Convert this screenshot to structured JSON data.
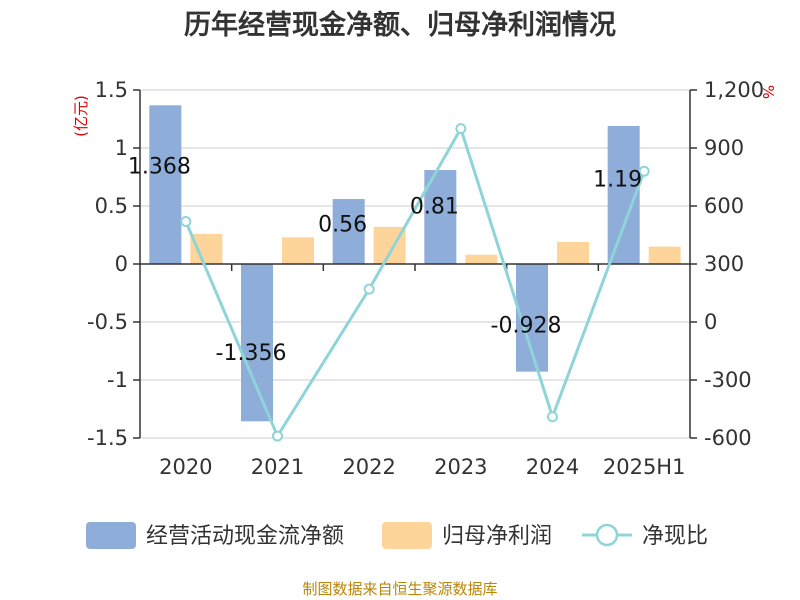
{
  "chart_data": {
    "type": "bar",
    "title": "历年经营现金净额、归母净利润情况",
    "categories": [
      "2020",
      "2021",
      "2022",
      "2023",
      "2024",
      "2025H1"
    ],
    "left_unit": "(亿元)",
    "right_unit": "%",
    "left_axis": {
      "min": -1.5,
      "max": 1.5,
      "ticks": [
        "1.5",
        "1",
        "0.5",
        "0",
        "-0.5",
        "-1",
        "-1.5"
      ],
      "tick_values": [
        1.5,
        1,
        0.5,
        0,
        -0.5,
        -1,
        -1.5
      ]
    },
    "right_axis": {
      "min": -600,
      "max": 1200,
      "ticks": [
        "1,200",
        "900",
        "600",
        "300",
        "0",
        "-300",
        "-600"
      ],
      "tick_values": [
        1200,
        900,
        600,
        300,
        0,
        -300,
        -600
      ]
    },
    "series": [
      {
        "name": "经营活动现金流净额",
        "type": "bar",
        "axis": "left",
        "color": "#8eadd9",
        "values": [
          1.368,
          -1.356,
          0.56,
          0.81,
          -0.928,
          1.19
        ],
        "labels": [
          "1.368",
          "-1.356",
          "0.56",
          "0.81",
          "-0.928",
          "1.19"
        ]
      },
      {
        "name": "归母净利润",
        "type": "bar",
        "axis": "left",
        "color": "#fdd59a",
        "values": [
          0.26,
          0.23,
          0.32,
          0.08,
          0.19,
          0.15
        ]
      },
      {
        "name": "净现比",
        "type": "line",
        "axis": "right",
        "color": "#8fd4d9",
        "values": [
          520,
          -590,
          170,
          1000,
          -490,
          780
        ]
      }
    ],
    "grid": true,
    "legend_position": "bottom"
  },
  "source": "制图数据来自恒生聚源数据库"
}
